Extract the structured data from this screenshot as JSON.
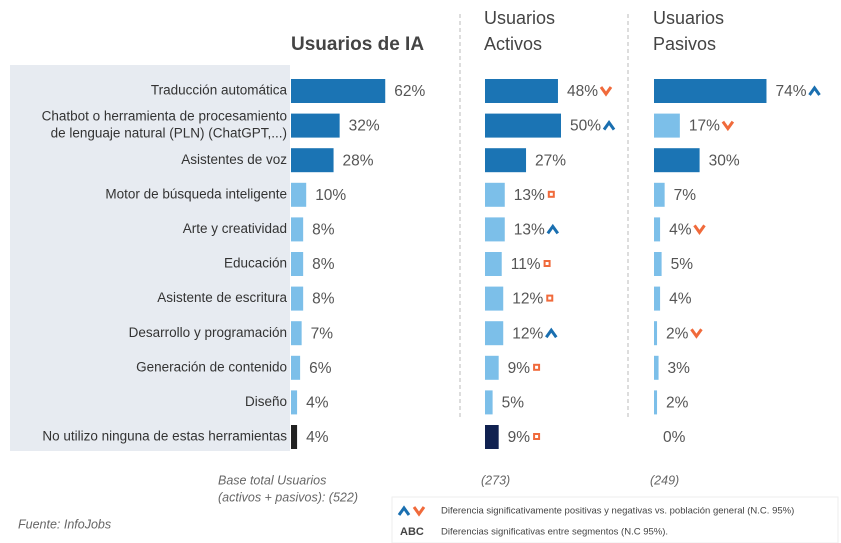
{
  "chart_data": {
    "type": "bar",
    "orientation": "horizontal",
    "categories": [
      "Traducción automática",
      [
        "Chatbot o herramienta de procesamiento",
        "de lenguaje natural (PLN) (ChatGPT,...)"
      ],
      "Asistentes de voz",
      "Motor de búsqueda inteligente",
      "Arte y creatividad",
      "Educación",
      "Asistente de escritura",
      "Desarrollo y programación",
      "Generación de contenido",
      "Diseño",
      "No utilizo ninguna de estas herramientas"
    ],
    "xlim": [
      0,
      100
    ],
    "series": [
      {
        "name": [
          "Usuarios de IA"
        ],
        "values": [
          62,
          32,
          28,
          10,
          8,
          8,
          8,
          7,
          6,
          4,
          4
        ],
        "value_labels": [
          "62%",
          "32%",
          "28%",
          "10%",
          "8%",
          "8%",
          "8%",
          "7%",
          "6%",
          "4%",
          "4%"
        ],
        "colors": [
          "#1b74b4",
          "#1b74b4",
          "#1b74b4",
          "#7cbfe9",
          "#7cbfe9",
          "#7cbfe9",
          "#7cbfe9",
          "#7cbfe9",
          "#7cbfe9",
          "#7cbfe9",
          "#222222"
        ],
        "markers": [
          null,
          null,
          null,
          null,
          null,
          null,
          null,
          null,
          null,
          null,
          null
        ],
        "base": [
          "Base total Usuarios",
          "(activos + pasivos): (522)"
        ]
      },
      {
        "name": [
          "Usuarios",
          "Activos"
        ],
        "values": [
          48,
          50,
          27,
          13,
          13,
          11,
          12,
          12,
          9,
          5,
          9
        ],
        "value_labels": [
          "48%",
          "50%",
          "27%",
          "13%",
          "13%",
          "11%",
          "12%",
          "12%",
          "9%",
          "5%",
          "9%"
        ],
        "colors": [
          "#1b74b4",
          "#1b74b4",
          "#1b74b4",
          "#7cbfe9",
          "#7cbfe9",
          "#7cbfe9",
          "#7cbfe9",
          "#7cbfe9",
          "#7cbfe9",
          "#7cbfe9",
          "#102150"
        ],
        "markers": [
          "down",
          "up",
          null,
          "b",
          "up",
          "b",
          "b",
          "up",
          "b",
          null,
          "b"
        ],
        "base": [
          "(273)"
        ]
      },
      {
        "name": [
          "Usuarios",
          "Pasivos"
        ],
        "values": [
          74,
          17,
          30,
          7,
          4,
          5,
          4,
          2,
          3,
          2,
          0
        ],
        "value_labels": [
          "74%",
          "17%",
          "30%",
          "7%",
          "4%",
          "5%",
          "4%",
          "2%",
          "3%",
          "2%",
          "0%"
        ],
        "colors": [
          "#1b74b4",
          "#7cbfe9",
          "#1b74b4",
          "#7cbfe9",
          "#7cbfe9",
          "#7cbfe9",
          "#7cbfe9",
          "#7cbfe9",
          "#7cbfe9",
          "#7cbfe9",
          "#7cbfe9"
        ],
        "markers": [
          "up",
          "down",
          null,
          null,
          "down",
          null,
          null,
          "down",
          null,
          null,
          null
        ],
        "base": [
          "(249)"
        ]
      }
    ],
    "legend": [
      {
        "symbol": null,
        "text": "Diferencia significativamente  positivas y negativas vs. población general (N.C. 95%)"
      },
      {
        "symbol": "ABC",
        "text": "Diferencias significativas entre segmentos (N.C 95%)."
      }
    ],
    "source": "Fuente: InfoJobs"
  }
}
